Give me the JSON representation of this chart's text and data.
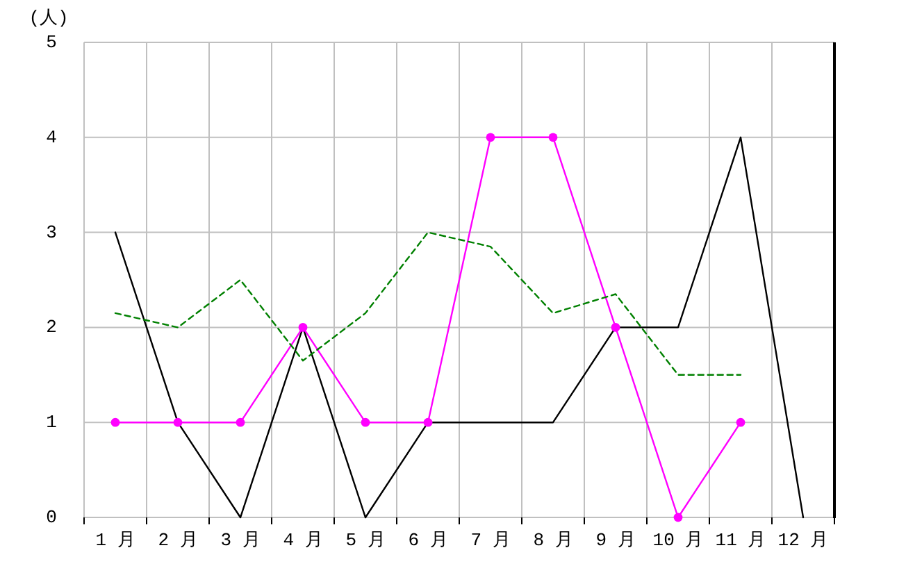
{
  "chart_data": {
    "type": "line",
    "ylabel": "(人)",
    "categories": [
      "1 月",
      "2 月",
      "3 月",
      "4 月",
      "5 月",
      "6 月",
      "7 月",
      "8 月",
      "9 月",
      "10 月",
      "11 月",
      "12 月"
    ],
    "ylim": [
      0,
      5
    ],
    "yticks": [
      0,
      1,
      2,
      3,
      4,
      5
    ],
    "grid": true,
    "series": [
      {
        "color": "#000000",
        "values": [
          3,
          1,
          0,
          2,
          0,
          1,
          1,
          1,
          2,
          2,
          4,
          0
        ],
        "marker": "none",
        "line_style": "solid"
      },
      {
        "color": "#ff00ff",
        "values": [
          1,
          1,
          1,
          2,
          1,
          1,
          4,
          4,
          2,
          0,
          1,
          null
        ],
        "marker": "circle",
        "line_style": "solid"
      },
      {
        "color": "#008000",
        "values": [
          2.15,
          2,
          2.5,
          1.65,
          2.15,
          3,
          2.85,
          2.15,
          2.35,
          1.5,
          1.5,
          null
        ],
        "marker": "none",
        "line_style": "dashed"
      }
    ]
  }
}
